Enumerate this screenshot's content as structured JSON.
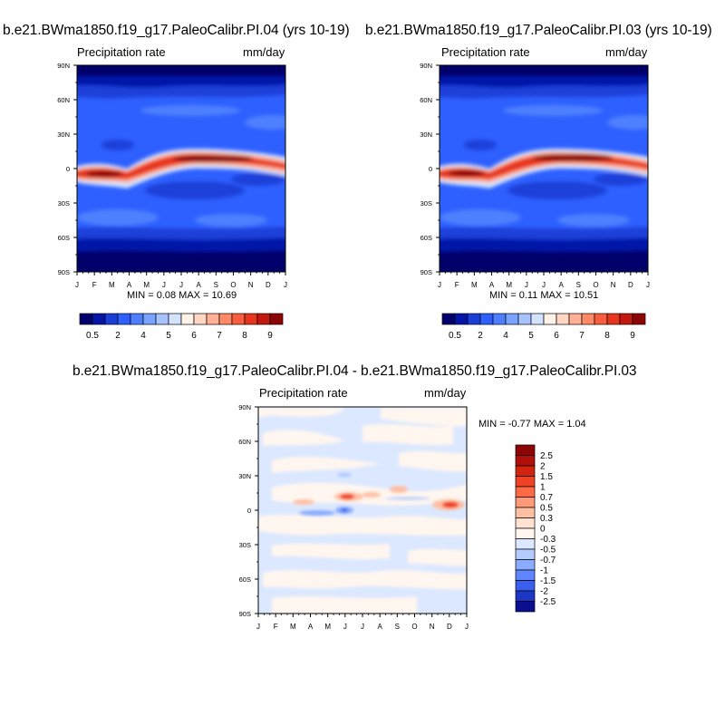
{
  "chart_data": [
    {
      "type": "heatmap",
      "title": "b.e21.BWma1850.f19_g17.PaleoCalibr.PI.04 (yrs 10-19)",
      "left_label": "Precipitation rate",
      "right_label": "mm/day",
      "x_tick_labels": [
        "J",
        "F",
        "M",
        "A",
        "M",
        "J",
        "J",
        "A",
        "S",
        "O",
        "N",
        "D",
        "J"
      ],
      "y_tick_labels": [
        "90N",
        "60N",
        "30N",
        "0",
        "30S",
        "60S",
        "90S"
      ],
      "stats": "MIN =   0.08 MAX =  10.69",
      "colorbar": {
        "orientation": "horizontal",
        "labels": [
          "0.5",
          "2",
          "4",
          "5",
          "6",
          "7",
          "8",
          "9"
        ],
        "colors": [
          "#03006b",
          "#0316a8",
          "#1a3fd8",
          "#2e60ff",
          "#4d80ff",
          "#7aa2ff",
          "#a8c2ff",
          "#d3e3ff",
          "#fff1e6",
          "#ffd6c2",
          "#ffb095",
          "#ff8a68",
          "#f95e3e",
          "#e8361e",
          "#c31a10",
          "#8e0505"
        ]
      }
    },
    {
      "type": "heatmap",
      "title": "b.e21.BWma1850.f19_g17.PaleoCalibr.PI.03 (yrs 10-19)",
      "left_label": "Precipitation rate",
      "right_label": "mm/day",
      "x_tick_labels": [
        "J",
        "F",
        "M",
        "A",
        "M",
        "J",
        "J",
        "A",
        "S",
        "O",
        "N",
        "D",
        "J"
      ],
      "y_tick_labels": [
        "90N",
        "60N",
        "30N",
        "0",
        "30S",
        "60S",
        "90S"
      ],
      "stats": "MIN =   0.11 MAX =  10.51",
      "colorbar": {
        "orientation": "horizontal",
        "labels": [
          "0.5",
          "2",
          "4",
          "5",
          "6",
          "7",
          "8",
          "9"
        ],
        "colors": [
          "#03006b",
          "#0316a8",
          "#1a3fd8",
          "#2e60ff",
          "#4d80ff",
          "#7aa2ff",
          "#a8c2ff",
          "#d3e3ff",
          "#fff1e6",
          "#ffd6c2",
          "#ffb095",
          "#ff8a68",
          "#f95e3e",
          "#e8361e",
          "#c31a10",
          "#8e0505"
        ]
      }
    },
    {
      "type": "heatmap",
      "title": "b.e21.BWma1850.f19_g17.PaleoCalibr.PI.04 - b.e21.BWma1850.f19_g17.PaleoCalibr.PI.03",
      "left_label": "Precipitation rate",
      "right_label": "mm/day",
      "x_tick_labels": [
        "J",
        "F",
        "M",
        "A",
        "M",
        "J",
        "J",
        "A",
        "S",
        "O",
        "N",
        "D",
        "J"
      ],
      "y_tick_labels": [
        "90N",
        "60N",
        "30N",
        "0",
        "30S",
        "60S",
        "90S"
      ],
      "stats": "MIN =  -0.77 MAX =   1.04",
      "colorbar": {
        "orientation": "vertical",
        "labels": [
          "2.5",
          "2",
          "1.5",
          "1",
          "0.7",
          "0.5",
          "0.3",
          "0",
          "-0.3",
          "-0.5",
          "-0.7",
          "-1",
          "-1.5",
          "-2",
          "-2.5"
        ],
        "colors": [
          "#8e0505",
          "#b01008",
          "#d2230f",
          "#ef4224",
          "#ff6a46",
          "#ff9a78",
          "#ffbfa3",
          "#ffe2d2",
          "#fff6ef",
          "#dce8ff",
          "#b4cbff",
          "#8aabff",
          "#5f86ff",
          "#3a5ff0",
          "#1c36c8",
          "#0a0f90"
        ]
      }
    }
  ]
}
